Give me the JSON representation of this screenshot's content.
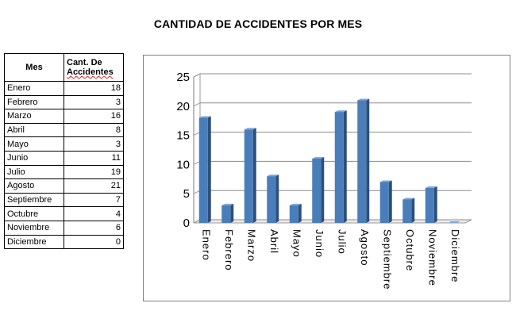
{
  "title": "CANTIDAD DE ACCIDENTES POR MES",
  "table": {
    "header_mes": "Mes",
    "header_cant_1": "Cant.",
    "header_cant_2": "De",
    "header_cant_3": "Accidentes",
    "rows": [
      {
        "mes": "Enero",
        "cant": "18"
      },
      {
        "mes": "Febrero",
        "cant": "3"
      },
      {
        "mes": "Marzo",
        "cant": "16"
      },
      {
        "mes": "Abril",
        "cant": "8"
      },
      {
        "mes": "Mayo",
        "cant": "3"
      },
      {
        "mes": "Junio",
        "cant": "11"
      },
      {
        "mes": "Julio",
        "cant": "19"
      },
      {
        "mes": "Agosto",
        "cant": "21"
      },
      {
        "mes": "Septiembre",
        "cant": "7"
      },
      {
        "mes": "Octubre",
        "cant": "4"
      },
      {
        "mes": "Noviembre",
        "cant": "6"
      },
      {
        "mes": "Diciembre",
        "cant": "0"
      }
    ]
  },
  "chart_data": {
    "type": "bar",
    "title": "",
    "xlabel": "",
    "ylabel": "",
    "categories": [
      "Enero",
      "Febrero",
      "Marzo",
      "Abril",
      "Mayo",
      "Junio",
      "Julio",
      "Agosto",
      "Septiembre",
      "Octubre",
      "Noviembre",
      "Diciembre"
    ],
    "values": [
      18,
      3,
      16,
      8,
      3,
      11,
      19,
      21,
      7,
      4,
      6,
      0
    ],
    "ylim": [
      0,
      25
    ],
    "yticks": [
      "0",
      "5",
      "10",
      "15",
      "20",
      "25"
    ],
    "grid": true,
    "legend": "none",
    "style": "3d-column",
    "bar_color": "#4a7ebb",
    "bar_side_color": "#2c4f7c",
    "bar_top_color": "#7fa6d6"
  }
}
